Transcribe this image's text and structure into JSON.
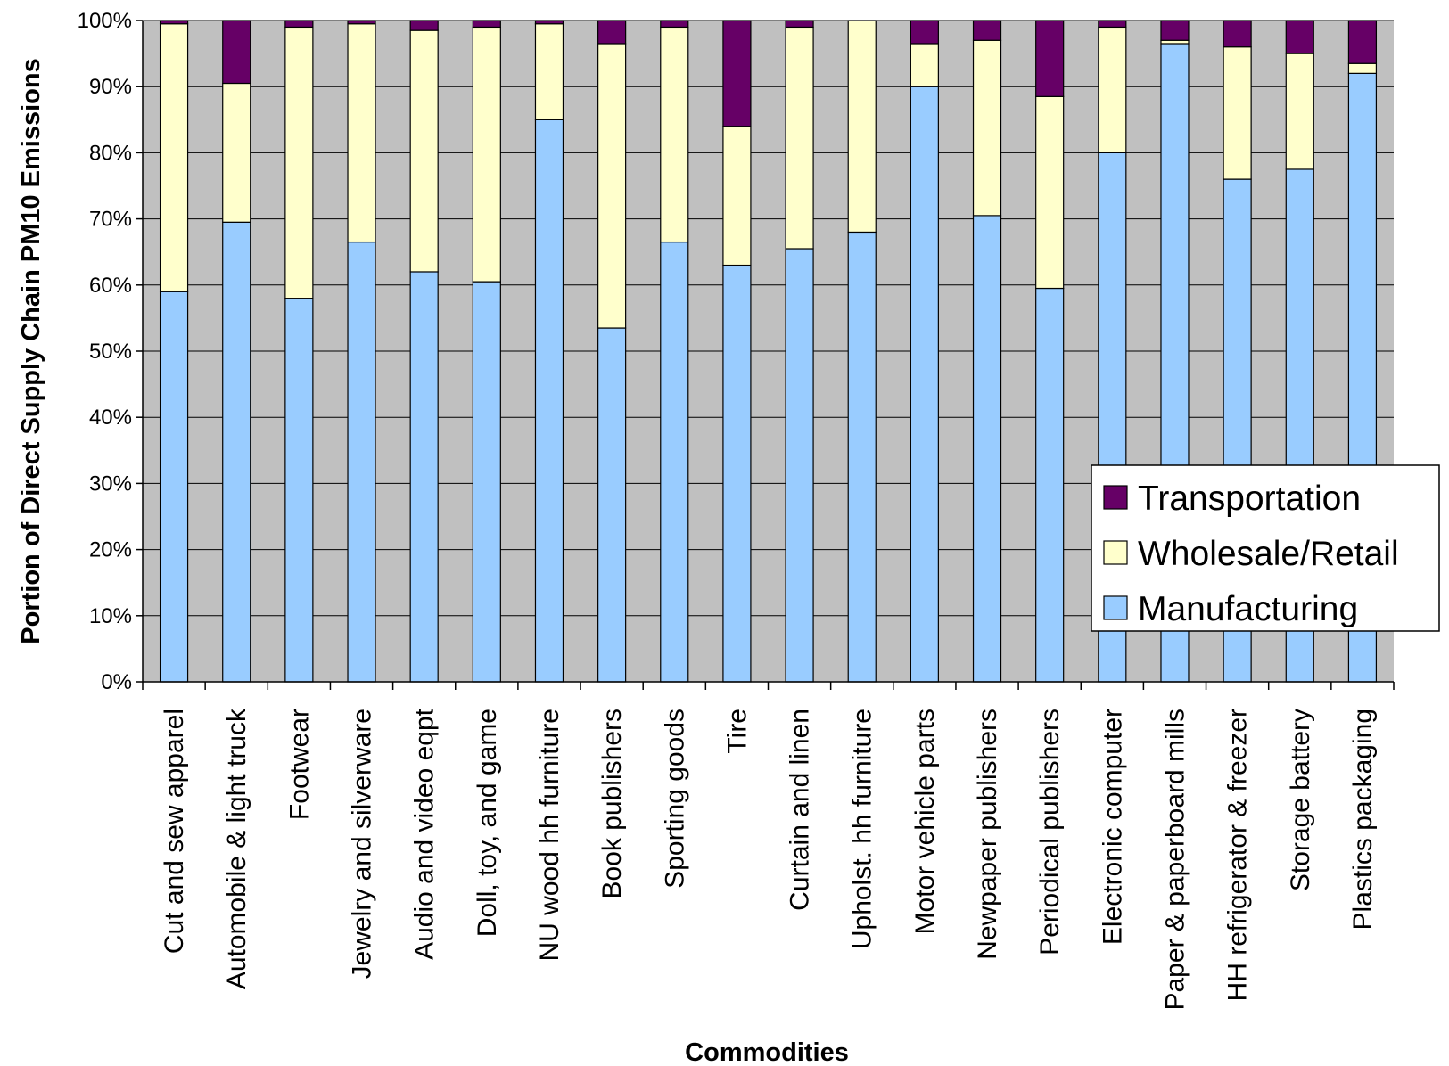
{
  "chart_data": {
    "type": "bar",
    "stacked": true,
    "title": "",
    "xlabel": "Commodities",
    "ylabel": "Portion of Direct Supply Chain PM10 Emissions",
    "ylim": [
      0,
      100
    ],
    "yticks": [
      "0%",
      "10%",
      "20%",
      "30%",
      "40%",
      "50%",
      "60%",
      "70%",
      "80%",
      "90%",
      "100%"
    ],
    "grid": true,
    "legend_position": "bottom-right",
    "categories": [
      "Cut and sew apparel",
      "Automobile & light truck",
      "Footwear",
      "Jewelry and silverware",
      "Audio and video eqpt",
      "Doll, toy, and game",
      "NU wood hh furniture",
      "Book publishers",
      "Sporting goods",
      "Tire",
      "Curtain and linen",
      "Upholst. hh furniture",
      "Motor vehicle parts",
      "Newpaper publishers",
      "Periodical publishers",
      "Electronic computer",
      "Paper & paperboard mills",
      "HH refrigerator & freezer",
      "Storage battery",
      "Plastics packaging"
    ],
    "series": [
      {
        "name": "Manufacturing",
        "color": "#99ccff",
        "values": [
          59,
          69.5,
          58,
          66.5,
          62,
          60.5,
          85,
          53.5,
          66.5,
          63,
          65.5,
          68,
          90,
          70.5,
          59.5,
          80,
          96.5,
          76,
          77.5,
          92
        ]
      },
      {
        "name": "Wholesale/Retail",
        "color": "#ffffcc",
        "values": [
          40.5,
          21,
          41,
          33,
          36.5,
          38.5,
          14.5,
          43,
          32.5,
          21,
          33.5,
          32,
          6.5,
          26.5,
          29,
          19,
          0.5,
          20,
          17.5,
          1.5
        ]
      },
      {
        "name": "Transportation",
        "color": "#660066",
        "values": [
          0.5,
          9.5,
          1,
          0.5,
          1.5,
          1,
          0.5,
          3.5,
          1,
          16,
          1,
          0,
          3.5,
          3,
          11.5,
          1,
          3,
          4,
          5,
          6.5
        ]
      }
    ]
  }
}
